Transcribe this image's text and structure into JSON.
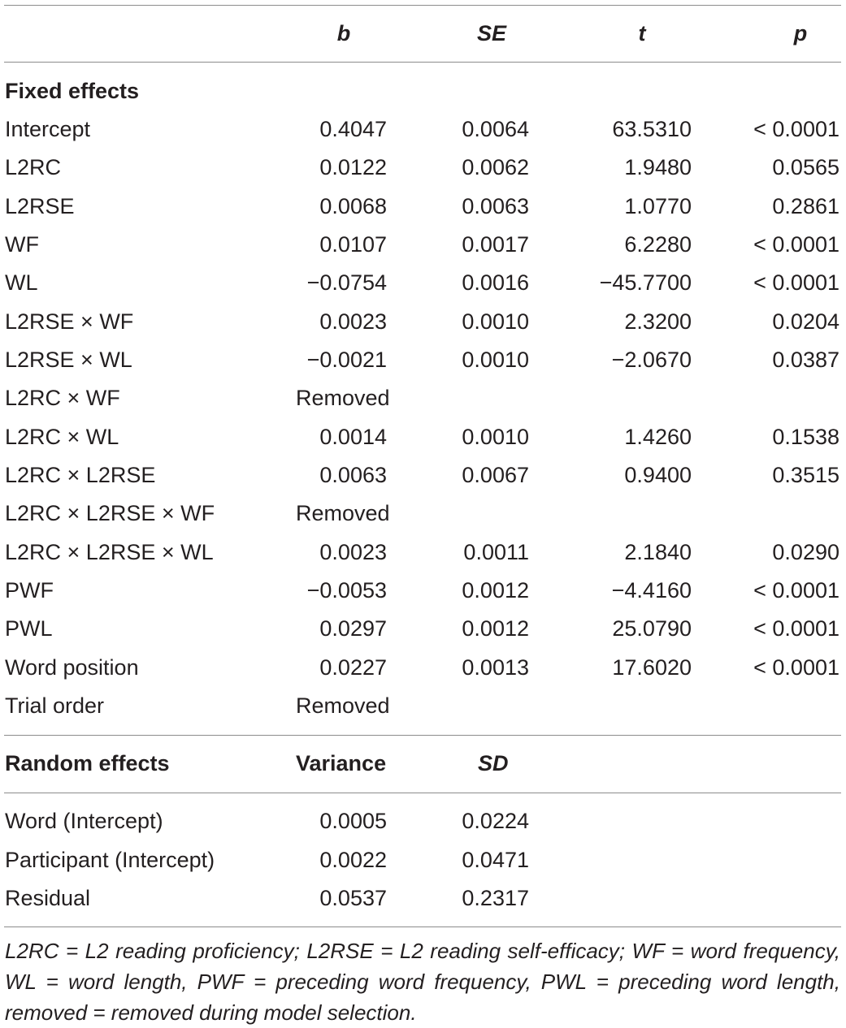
{
  "header": {
    "b": "b",
    "se": "SE",
    "t": "t",
    "p": "p"
  },
  "fixed": {
    "title": "Fixed effects",
    "rows": [
      {
        "label": "Intercept",
        "b": "0.4047",
        "se": "0.0064",
        "t": "63.5310",
        "p": "< 0.0001"
      },
      {
        "label": "L2RC",
        "b": "0.0122",
        "se": "0.0062",
        "t": "1.9480",
        "p": "0.0565"
      },
      {
        "label": "L2RSE",
        "b": "0.0068",
        "se": "0.0063",
        "t": "1.0770",
        "p": "0.2861"
      },
      {
        "label": "WF",
        "b": "0.0107",
        "se": "0.0017",
        "t": "6.2280",
        "p": "< 0.0001"
      },
      {
        "label": "WL",
        "b": "−0.0754",
        "se": "0.0016",
        "t": "−45.7700",
        "p": "< 0.0001"
      },
      {
        "label": "L2RSE × WF",
        "b": "0.0023",
        "se": "0.0010",
        "t": "2.3200",
        "p": "0.0204"
      },
      {
        "label": "L2RSE × WL",
        "b": "−0.0021",
        "se": "0.0010",
        "t": "−2.0670",
        "p": "0.0387"
      },
      {
        "label": "L2RC × WF",
        "b": "Removed",
        "se": "",
        "t": "",
        "p": ""
      },
      {
        "label": "L2RC × WL",
        "b": "0.0014",
        "se": "0.0010",
        "t": "1.4260",
        "p": "0.1538"
      },
      {
        "label": "L2RC × L2RSE",
        "b": "0.0063",
        "se": "0.0067",
        "t": "0.9400",
        "p": "0.3515"
      },
      {
        "label": "L2RC × L2RSE × WF",
        "b": "Removed",
        "se": "",
        "t": "",
        "p": ""
      },
      {
        "label": "L2RC × L2RSE × WL",
        "b": "0.0023",
        "se": "0.0011",
        "t": "2.1840",
        "p": "0.0290"
      },
      {
        "label": "PWF",
        "b": "−0.0053",
        "se": "0.0012",
        "t": "−4.4160",
        "p": "< 0.0001"
      },
      {
        "label": "PWL",
        "b": "0.0297",
        "se": "0.0012",
        "t": "25.0790",
        "p": "< 0.0001"
      },
      {
        "label": "Word position",
        "b": "0.0227",
        "se": "0.0013",
        "t": "17.6020",
        "p": "< 0.0001"
      },
      {
        "label": "Trial order",
        "b": "Removed",
        "se": "",
        "t": "",
        "p": ""
      }
    ]
  },
  "random": {
    "title": "Random effects",
    "col_variance": "Variance",
    "col_sd": "SD",
    "rows": [
      {
        "label": "Word (Intercept)",
        "variance": "0.0005",
        "sd": "0.0224"
      },
      {
        "label": "Participant (Intercept)",
        "variance": "0.0022",
        "sd": "0.0471"
      },
      {
        "label": "Residual",
        "variance": "0.0537",
        "sd": "0.2317"
      }
    ]
  },
  "footnote": "L2RC = L2 reading proficiency; L2RSE = L2 reading self-efficacy; WF = word frequency, WL = word length, PWF = preceding word frequency, PWL = preceding word length, removed = removed during model selection."
}
